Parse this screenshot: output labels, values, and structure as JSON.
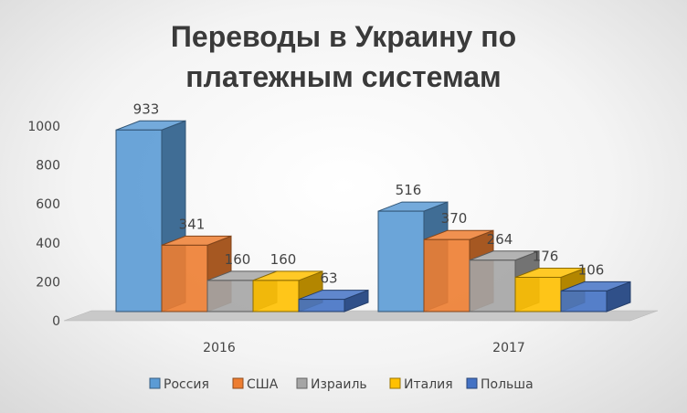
{
  "chart_data": {
    "type": "bar",
    "title_lines": [
      "Переводы в Украину по",
      "платежным системам"
    ],
    "categories": [
      "2016",
      "2017"
    ],
    "series": [
      {
        "name": "Россия",
        "values": [
          933,
          516
        ],
        "color": "#5b9bd5"
      },
      {
        "name": "США",
        "values": [
          341,
          370
        ],
        "color": "#ed7d31"
      },
      {
        "name": "Израиль",
        "values": [
          160,
          264
        ],
        "color": "#a5a5a5"
      },
      {
        "name": "Италия",
        "values": [
          160,
          176
        ],
        "color": "#ffc000"
      },
      {
        "name": "Польша",
        "values": [
          63,
          106
        ],
        "color": "#4472c4"
      }
    ],
    "ylim": [
      0,
      1000
    ],
    "yticks": [
      0,
      200,
      400,
      600,
      800,
      1000
    ],
    "grid": false,
    "legend": "bottom",
    "style": "3d-column"
  }
}
